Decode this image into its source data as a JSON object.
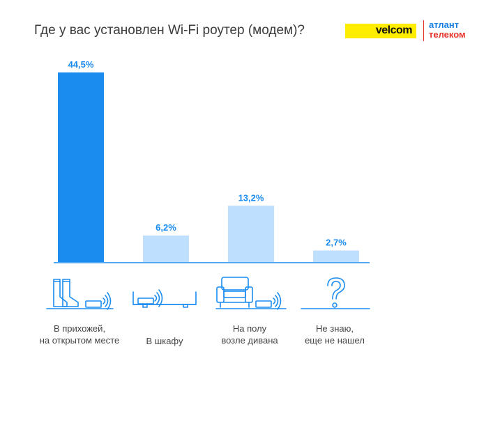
{
  "title": "Где у вас установлен Wi-Fi роутер (модем)?",
  "logos": {
    "velcom": "velcom",
    "atlant_line1": "атлант",
    "atlant_line2": "телеком"
  },
  "colors": {
    "highlight_bar": "#1a8cf0",
    "bar": "#bfdfff",
    "value_label": "#1a8cf0",
    "baseline": "#1a8cf0",
    "icon": "#1a8cf0"
  },
  "chart_data": {
    "type": "bar",
    "title": "Где у вас установлен Wi-Fi роутер (модем)?",
    "categories": [
      "В прихожей,\nна открытом месте",
      "В шкафу",
      "На полу\nвозле дивана",
      "Не знаю,\nеще не нашел"
    ],
    "values": [
      44.5,
      6.2,
      13.2,
      2.7
    ],
    "value_labels": [
      "44,5%",
      "6,2%",
      "13,2%",
      "2,7%"
    ],
    "highlight_index": 0,
    "icons": [
      "boots-and-router-icon",
      "cabinet-router-icon",
      "armchair-router-icon",
      "question-mark-icon"
    ],
    "ylim": [
      0,
      44.5
    ],
    "grid": false,
    "legend": "none"
  }
}
